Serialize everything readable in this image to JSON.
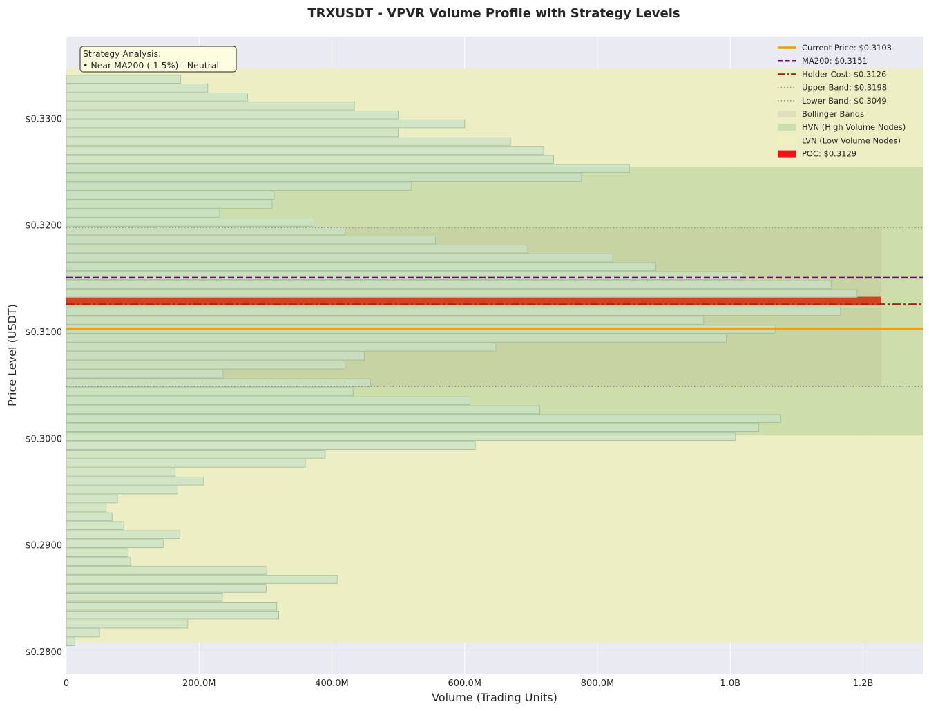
{
  "chart_data": {
    "type": "bar",
    "orientation": "horizontal",
    "title": "TRXUSDT - VPVR Volume Profile with Strategy Levels",
    "xlabel": "Volume (Trading Units)",
    "ylabel": "Price Level (USDT)",
    "xlim": [
      0,
      1290000000
    ],
    "ylim": [
      0.2779,
      0.3377
    ],
    "x_ticks": [
      {
        "value": 0,
        "label": "0"
      },
      {
        "value": 200000000,
        "label": "200.0M"
      },
      {
        "value": 400000000,
        "label": "400.0M"
      },
      {
        "value": 600000000,
        "label": "600.0M"
      },
      {
        "value": 800000000,
        "label": "800.0M"
      },
      {
        "value": 1000000000,
        "label": "1.0B"
      },
      {
        "value": 1200000000,
        "label": "1.2B"
      }
    ],
    "y_ticks": [
      {
        "value": 0.28,
        "label": "$0.2800"
      },
      {
        "value": 0.29,
        "label": "$0.2900"
      },
      {
        "value": 0.3,
        "label": "$0.3000"
      },
      {
        "value": 0.31,
        "label": "$0.3100"
      },
      {
        "value": 0.32,
        "label": "$0.3200"
      },
      {
        "value": 0.33,
        "label": "$0.3300"
      }
    ],
    "bar_height": 0.00075,
    "volume_profile": [
      {
        "price": 0.28095,
        "volume": 13000000
      },
      {
        "price": 0.28179,
        "volume": 50000000
      },
      {
        "price": 0.28262,
        "volume": 183000000
      },
      {
        "price": 0.28346,
        "volume": 320000000
      },
      {
        "price": 0.2843,
        "volume": 317000000
      },
      {
        "price": 0.28514,
        "volume": 235000000
      },
      {
        "price": 0.28597,
        "volume": 301000000
      },
      {
        "price": 0.28681,
        "volume": 408000000
      },
      {
        "price": 0.28765,
        "volume": 302000000
      },
      {
        "price": 0.28849,
        "volume": 97000000
      },
      {
        "price": 0.28932,
        "volume": 93000000
      },
      {
        "price": 0.29016,
        "volume": 146000000
      },
      {
        "price": 0.291,
        "volume": 171000000
      },
      {
        "price": 0.29184,
        "volume": 87000000
      },
      {
        "price": 0.29267,
        "volume": 69000000
      },
      {
        "price": 0.29351,
        "volume": 60000000
      },
      {
        "price": 0.29435,
        "volume": 77000000
      },
      {
        "price": 0.29519,
        "volume": 168000000
      },
      {
        "price": 0.29602,
        "volume": 207000000
      },
      {
        "price": 0.29686,
        "volume": 164000000
      },
      {
        "price": 0.2977,
        "volume": 360000000
      },
      {
        "price": 0.29854,
        "volume": 390000000
      },
      {
        "price": 0.29937,
        "volume": 616000000
      },
      {
        "price": 0.30021,
        "volume": 1008000000
      },
      {
        "price": 0.30105,
        "volume": 1043000000
      },
      {
        "price": 0.30189,
        "volume": 1076000000
      },
      {
        "price": 0.30272,
        "volume": 713000000
      },
      {
        "price": 0.30356,
        "volume": 608000000
      },
      {
        "price": 0.3044,
        "volume": 432000000
      },
      {
        "price": 0.30524,
        "volume": 458000000
      },
      {
        "price": 0.30607,
        "volume": 236000000
      },
      {
        "price": 0.30691,
        "volume": 420000000
      },
      {
        "price": 0.30775,
        "volume": 449000000
      },
      {
        "price": 0.30859,
        "volume": 647000000
      },
      {
        "price": 0.30942,
        "volume": 994000000
      },
      {
        "price": 0.31026,
        "volume": 1068000000
      },
      {
        "price": 0.3111,
        "volume": 960000000
      },
      {
        "price": 0.31194,
        "volume": 1166000000
      },
      {
        "price": 0.3129,
        "volume": 1226000000,
        "poc": true
      },
      {
        "price": 0.31361,
        "volume": 1191000000
      },
      {
        "price": 0.31445,
        "volume": 1152000000
      },
      {
        "price": 0.31529,
        "volume": 1019000000
      },
      {
        "price": 0.31613,
        "volume": 888000000
      },
      {
        "price": 0.31696,
        "volume": 823000000
      },
      {
        "price": 0.3178,
        "volume": 695000000
      },
      {
        "price": 0.31864,
        "volume": 556000000
      },
      {
        "price": 0.31948,
        "volume": 420000000
      },
      {
        "price": 0.32031,
        "volume": 373000000
      },
      {
        "price": 0.32115,
        "volume": 231000000
      },
      {
        "price": 0.32199,
        "volume": 310000000
      },
      {
        "price": 0.32283,
        "volume": 313000000
      },
      {
        "price": 0.32366,
        "volume": 520000000
      },
      {
        "price": 0.3245,
        "volume": 776000000
      },
      {
        "price": 0.32534,
        "volume": 848000000
      },
      {
        "price": 0.32618,
        "volume": 734000000
      },
      {
        "price": 0.32701,
        "volume": 719000000
      },
      {
        "price": 0.32785,
        "volume": 669000000
      },
      {
        "price": 0.32869,
        "volume": 500000000
      },
      {
        "price": 0.32953,
        "volume": 600000000
      },
      {
        "price": 0.33036,
        "volume": 500000000
      },
      {
        "price": 0.3312,
        "volume": 434000000
      },
      {
        "price": 0.33204,
        "volume": 273000000
      },
      {
        "price": 0.33288,
        "volume": 213000000
      },
      {
        "price": 0.33371,
        "volume": 172000000
      },
      {
        "price": 0.33455,
        "volume": 0
      }
    ],
    "zones": {
      "lvn_top": [
        0.3255,
        0.3347
      ],
      "lvn_bottom": [
        0.2809,
        0.3003
      ],
      "hvn": [
        0.3003,
        0.3255
      ],
      "bollinger": {
        "lower": 0.3049,
        "upper": 0.3198,
        "volume_extent": 1228000000
      }
    },
    "levels": {
      "current_price": 0.3103,
      "ma200": 0.3151,
      "holder_cost": 0.3126,
      "upper_band": 0.3198,
      "lower_band": 0.3049,
      "poc": 0.3129
    },
    "legend": {
      "position": "top-right",
      "entries": [
        {
          "label": "Current Price: $0.3103",
          "style": "solid-line",
          "color": "#f5a000"
        },
        {
          "label": "MA200: $0.3151",
          "style": "dashed-line",
          "color": "#6a0f6e"
        },
        {
          "label": "Holder Cost: $0.3126",
          "style": "dashdot-line",
          "color": "#a8251c"
        },
        {
          "label": "Upper Band: $0.3198",
          "style": "dotted-line",
          "color": "#8c8c8c"
        },
        {
          "label": "Lower Band: $0.3049",
          "style": "dotted-line",
          "color": "#8c8c8c"
        },
        {
          "label": "Bollinger Bands",
          "style": "patch",
          "color": "#dcdcbf"
        },
        {
          "label": "HVN (High Volume Nodes)",
          "style": "patch",
          "color": "#c4dea9"
        },
        {
          "label": "LVN (Low Volume Nodes)",
          "style": "patch",
          "color": "#f1f1bf"
        },
        {
          "label": "POC: $0.3129",
          "style": "patch",
          "color": "#f11515"
        }
      ]
    },
    "annotation": {
      "lines": [
        "Strategy Analysis:",
        "• Near MA200 (-1.5%) - Neutral"
      ]
    },
    "grid": true,
    "colors": {
      "background": "#eaeaf2",
      "bar_fill": "#c7e2c5",
      "bar_edge": "#9fb89a",
      "lvn": "#eeeec4",
      "hvn": "#cddeab",
      "bollinger": "#c8d3a4",
      "current_price": "#f5a000",
      "ma200": "#6a0f6e",
      "holder_cost": "#a8251c",
      "bands": "#8c8c8c",
      "poc": "#d4421e"
    }
  }
}
